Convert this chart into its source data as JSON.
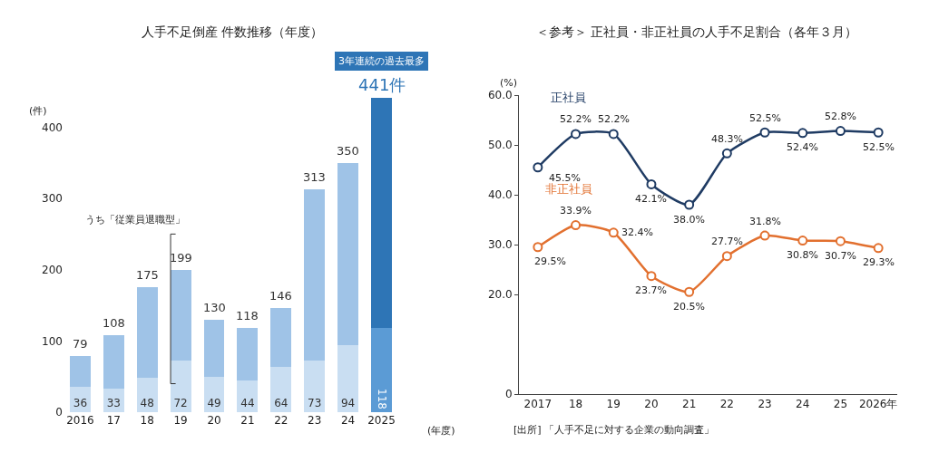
{
  "chart_data": [
    {
      "type": "bar",
      "title": "人手不足倒産 件数推移（年度）",
      "xlabel": "(年度)",
      "ylabel": "(件)",
      "stacked": true,
      "categories": [
        "2016",
        "17",
        "18",
        "19",
        "20",
        "21",
        "22",
        "23",
        "24",
        "2025"
      ],
      "series": [
        {
          "colors": [
            "#c9def2",
            "#c9def2",
            "#c9def2",
            "#c9def2",
            "#c9def2",
            "#c9def2",
            "#c9def2",
            "#c9def2",
            "#c9def2",
            "#5b9bd5"
          ],
          "values": [
            36,
            33,
            48,
            72,
            49,
            44,
            64,
            73,
            94,
            118
          ],
          "value_labels": [
            "36",
            "33",
            "48",
            "72",
            "49",
            "44",
            "64",
            "73",
            "94",
            "118"
          ]
        },
        {
          "colors": [
            "#9fc3e7",
            "#9fc3e7",
            "#9fc3e7",
            "#9fc3e7",
            "#9fc3e7",
            "#9fc3e7",
            "#9fc3e7",
            "#9fc3e7",
            "#9fc3e7",
            "#2e75b6"
          ],
          "values": [
            43,
            75,
            127,
            127,
            81,
            74,
            82,
            240,
            256,
            323
          ]
        }
      ],
      "totals": [
        "79",
        "108",
        "175",
        "199",
        "130",
        "118",
        "146",
        "313",
        "350",
        "441件"
      ],
      "ylim": [
        0,
        445
      ],
      "yticks": [
        0,
        100,
        200,
        300,
        400
      ],
      "grid": false,
      "legend": false,
      "annotations": [
        "うち「従業員退職型」",
        "3年連続の過去最多"
      ]
    },
    {
      "type": "line",
      "title": "＜参考＞ 正社員・非正社員の人手不足割合（各年３月）",
      "ylabel": "(%)",
      "categories": [
        "2017",
        "18",
        "19",
        "20",
        "21",
        "22",
        "23",
        "24",
        "25",
        "2026年"
      ],
      "series": [
        {
          "name": "正社員",
          "color": "#1f3b63",
          "values": [
            45.5,
            52.2,
            52.2,
            42.1,
            38.0,
            48.3,
            52.5,
            52.4,
            52.8,
            52.5
          ],
          "value_labels": [
            "45.5%",
            "52.2%",
            "52.2%",
            "42.1%",
            "38.0%",
            "48.3%",
            "52.5%",
            "52.4%",
            "52.8%",
            "52.5%"
          ]
        },
        {
          "name": "非正社員",
          "color": "#e2702f",
          "values": [
            29.5,
            33.9,
            32.4,
            23.7,
            20.5,
            27.7,
            31.8,
            30.8,
            30.7,
            29.3
          ],
          "value_labels": [
            "29.5%",
            "33.9%",
            "32.4%",
            "23.7%",
            "20.5%",
            "27.7%",
            "31.8%",
            "30.8%",
            "30.7%",
            "29.3%"
          ]
        }
      ],
      "ylim": [
        0,
        60
      ],
      "yticks": [
        0,
        {
          "value": 20,
          "label": "20.0"
        },
        {
          "value": 30,
          "label": "30.0"
        },
        {
          "value": 40,
          "label": "40.0"
        },
        {
          "value": 50,
          "label": "50.0"
        },
        {
          "value": 60,
          "label": "60.0"
        }
      ],
      "grid": false,
      "legend": false,
      "marker": "circle",
      "line_style": "solid",
      "annotations": [
        "[出所] 「人手不足に対する企業の動向調査」"
      ]
    }
  ]
}
